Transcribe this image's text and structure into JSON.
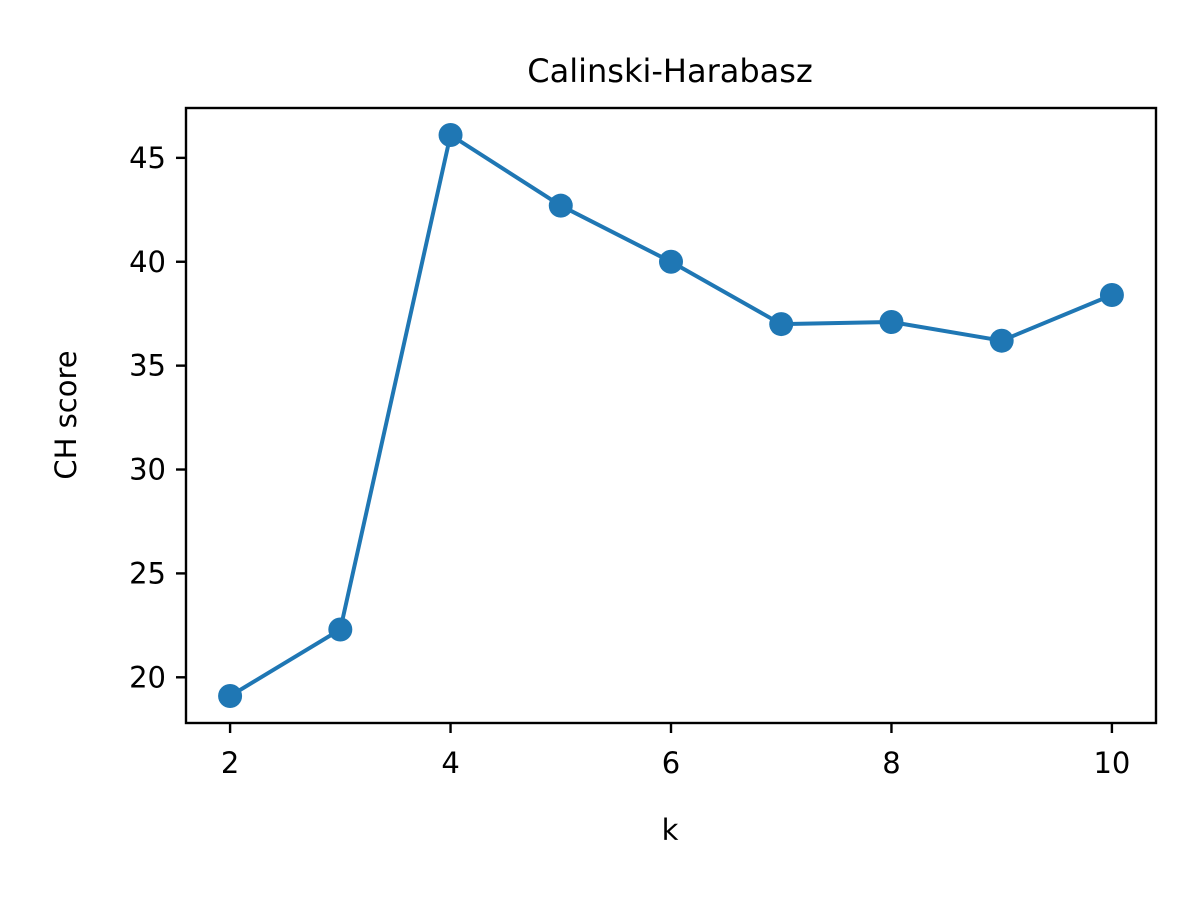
{
  "chart_data": {
    "type": "line",
    "title": "Calinski-Harabasz",
    "xlabel": "k",
    "ylabel": "CH score",
    "x": [
      2,
      3,
      4,
      5,
      6,
      7,
      8,
      9,
      10
    ],
    "series": [
      {
        "values": [
          19.1,
          22.3,
          46.1,
          42.7,
          40.0,
          37.0,
          37.1,
          36.2,
          38.4
        ]
      }
    ],
    "xticks": [
      "2",
      "4",
      "6",
      "8",
      "10"
    ],
    "yticks": [
      "20",
      "25",
      "30",
      "35",
      "40",
      "45"
    ],
    "xlim": [
      1.6,
      10.4
    ],
    "ylim": [
      17.8,
      47.4
    ],
    "grid": false,
    "marker": "circle",
    "color": "#1f77b4"
  }
}
